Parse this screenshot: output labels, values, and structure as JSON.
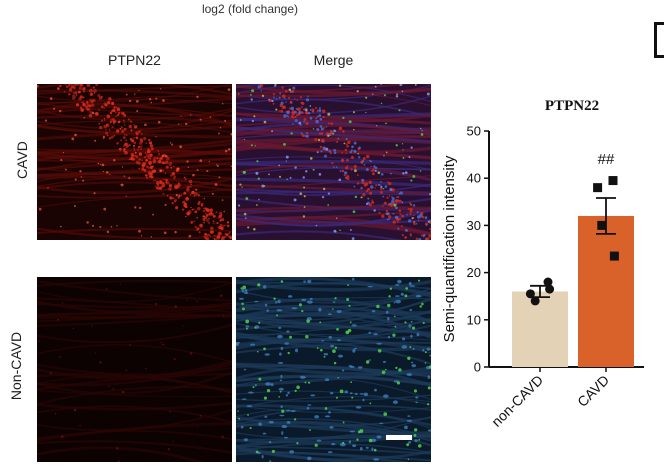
{
  "figure": {
    "top_axis_label": "log2 (fold change)",
    "columns": [
      "PTPN22",
      "Merge"
    ],
    "rows": [
      "CAVD",
      "Non-CAVD"
    ]
  },
  "chart_data": {
    "type": "bar",
    "title": "PTPN22",
    "ylabel": "Semi-quantification intensity",
    "xlabel": "",
    "categories": [
      "non-CAVD",
      "CAVD"
    ],
    "values": [
      16,
      32
    ],
    "errors": [
      1.2,
      3.8
    ],
    "points": [
      [
        18,
        15.5,
        14,
        16.5
      ],
      [
        39.5,
        38,
        30,
        23.5
      ]
    ],
    "bar_colors": [
      "#e3d2b6",
      "#d9622b"
    ],
    "point_colors": [
      "#111111",
      "#111111"
    ],
    "point_markers": [
      "circle",
      "square"
    ],
    "ylim": [
      0,
      50
    ],
    "yticks": [
      0,
      10,
      20,
      30,
      40,
      50
    ],
    "annotations": [
      {
        "category": "CAVD",
        "text": "##"
      }
    ],
    "grid": false,
    "legend": "none"
  },
  "colors": {
    "tissue_red": "#d92a1a",
    "nuclei_blue": "#4a6fd8",
    "green_signal": "#4fd44a",
    "panel_dark": "#0d0202"
  },
  "scale_bar_icon": "scale-bar"
}
